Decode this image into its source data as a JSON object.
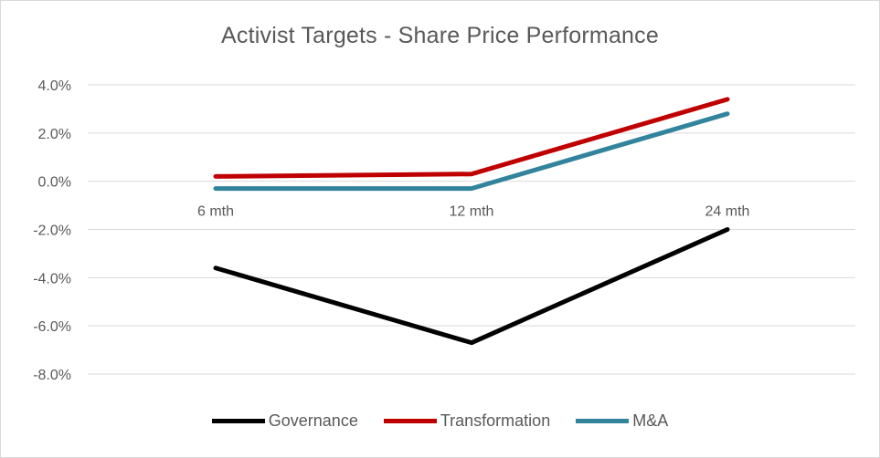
{
  "chart_data": {
    "type": "line",
    "title": "Activist Targets - Share Price Performance",
    "categories": [
      "6 mth",
      "12 mth",
      "24 mth"
    ],
    "ylim": [
      -8.0,
      4.0
    ],
    "yticks": [
      4.0,
      2.0,
      0.0,
      -2.0,
      -4.0,
      -6.0,
      -8.0
    ],
    "ytick_labels": [
      "4.0%",
      "2.0%",
      "0.0%",
      "-2.0%",
      "-4.0%",
      "-6.0%",
      "-8.0%"
    ],
    "grid": true,
    "legend_position": "bottom",
    "series": [
      {
        "name": "Governance",
        "values": [
          -3.6,
          -6.7,
          -2.0
        ],
        "color": "#000000"
      },
      {
        "name": "Transformation",
        "values": [
          0.2,
          0.3,
          3.4
        ],
        "color": "#c00000"
      },
      {
        "name": "M&A",
        "values": [
          -0.3,
          -0.3,
          2.8
        ],
        "color": "#31849b"
      }
    ]
  }
}
